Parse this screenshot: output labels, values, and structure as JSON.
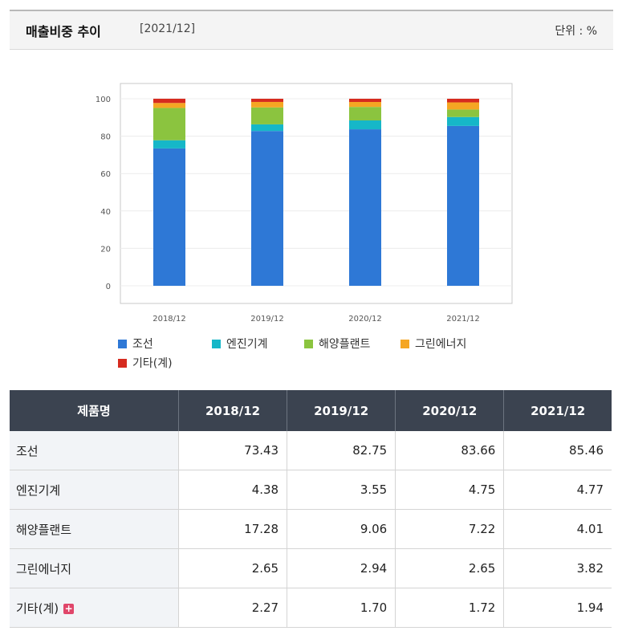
{
  "header": {
    "title": "매출비중 추이",
    "period": "[2021/12]",
    "unit": "단위 : %"
  },
  "colors": {
    "조선": "#2e78d6",
    "엔진기계": "#16b7c8",
    "해양플랜트": "#8bc43f",
    "그린에너지": "#f5a623",
    "기타(계)": "#d62b1f"
  },
  "chart_data": {
    "type": "bar",
    "stacked": true,
    "categories": [
      "2018/12",
      "2019/12",
      "2020/12",
      "2021/12"
    ],
    "series": [
      {
        "name": "조선",
        "values": [
          73.43,
          82.75,
          83.66,
          85.46
        ]
      },
      {
        "name": "엔진기계",
        "values": [
          4.38,
          3.55,
          4.75,
          4.77
        ]
      },
      {
        "name": "해양플랜트",
        "values": [
          17.28,
          9.06,
          7.22,
          4.01
        ]
      },
      {
        "name": "그린에너지",
        "values": [
          2.65,
          2.94,
          2.65,
          3.82
        ]
      },
      {
        "name": "기타(계)",
        "values": [
          2.27,
          1.7,
          1.72,
          1.94
        ]
      }
    ],
    "yticks": [
      "0",
      "20",
      "40",
      "60",
      "80",
      "100"
    ],
    "ylim": [
      0,
      100
    ],
    "grid": true,
    "legend": "bottom"
  },
  "table": {
    "header_label": "제품명",
    "columns": [
      "2018/12",
      "2019/12",
      "2020/12",
      "2021/12"
    ],
    "rows": [
      {
        "label": "조선",
        "values": [
          "73.43",
          "82.75",
          "83.66",
          "85.46"
        ]
      },
      {
        "label": "엔진기계",
        "values": [
          "4.38",
          "3.55",
          "4.75",
          "4.77"
        ]
      },
      {
        "label": "해양플랜트",
        "values": [
          "17.28",
          "9.06",
          "7.22",
          "4.01"
        ]
      },
      {
        "label": "그린에너지",
        "values": [
          "2.65",
          "2.94",
          "2.65",
          "3.82"
        ]
      },
      {
        "label": "기타(계)",
        "values": [
          "2.27",
          "1.70",
          "1.72",
          "1.94"
        ],
        "expand_icon": "plus-icon"
      }
    ]
  }
}
